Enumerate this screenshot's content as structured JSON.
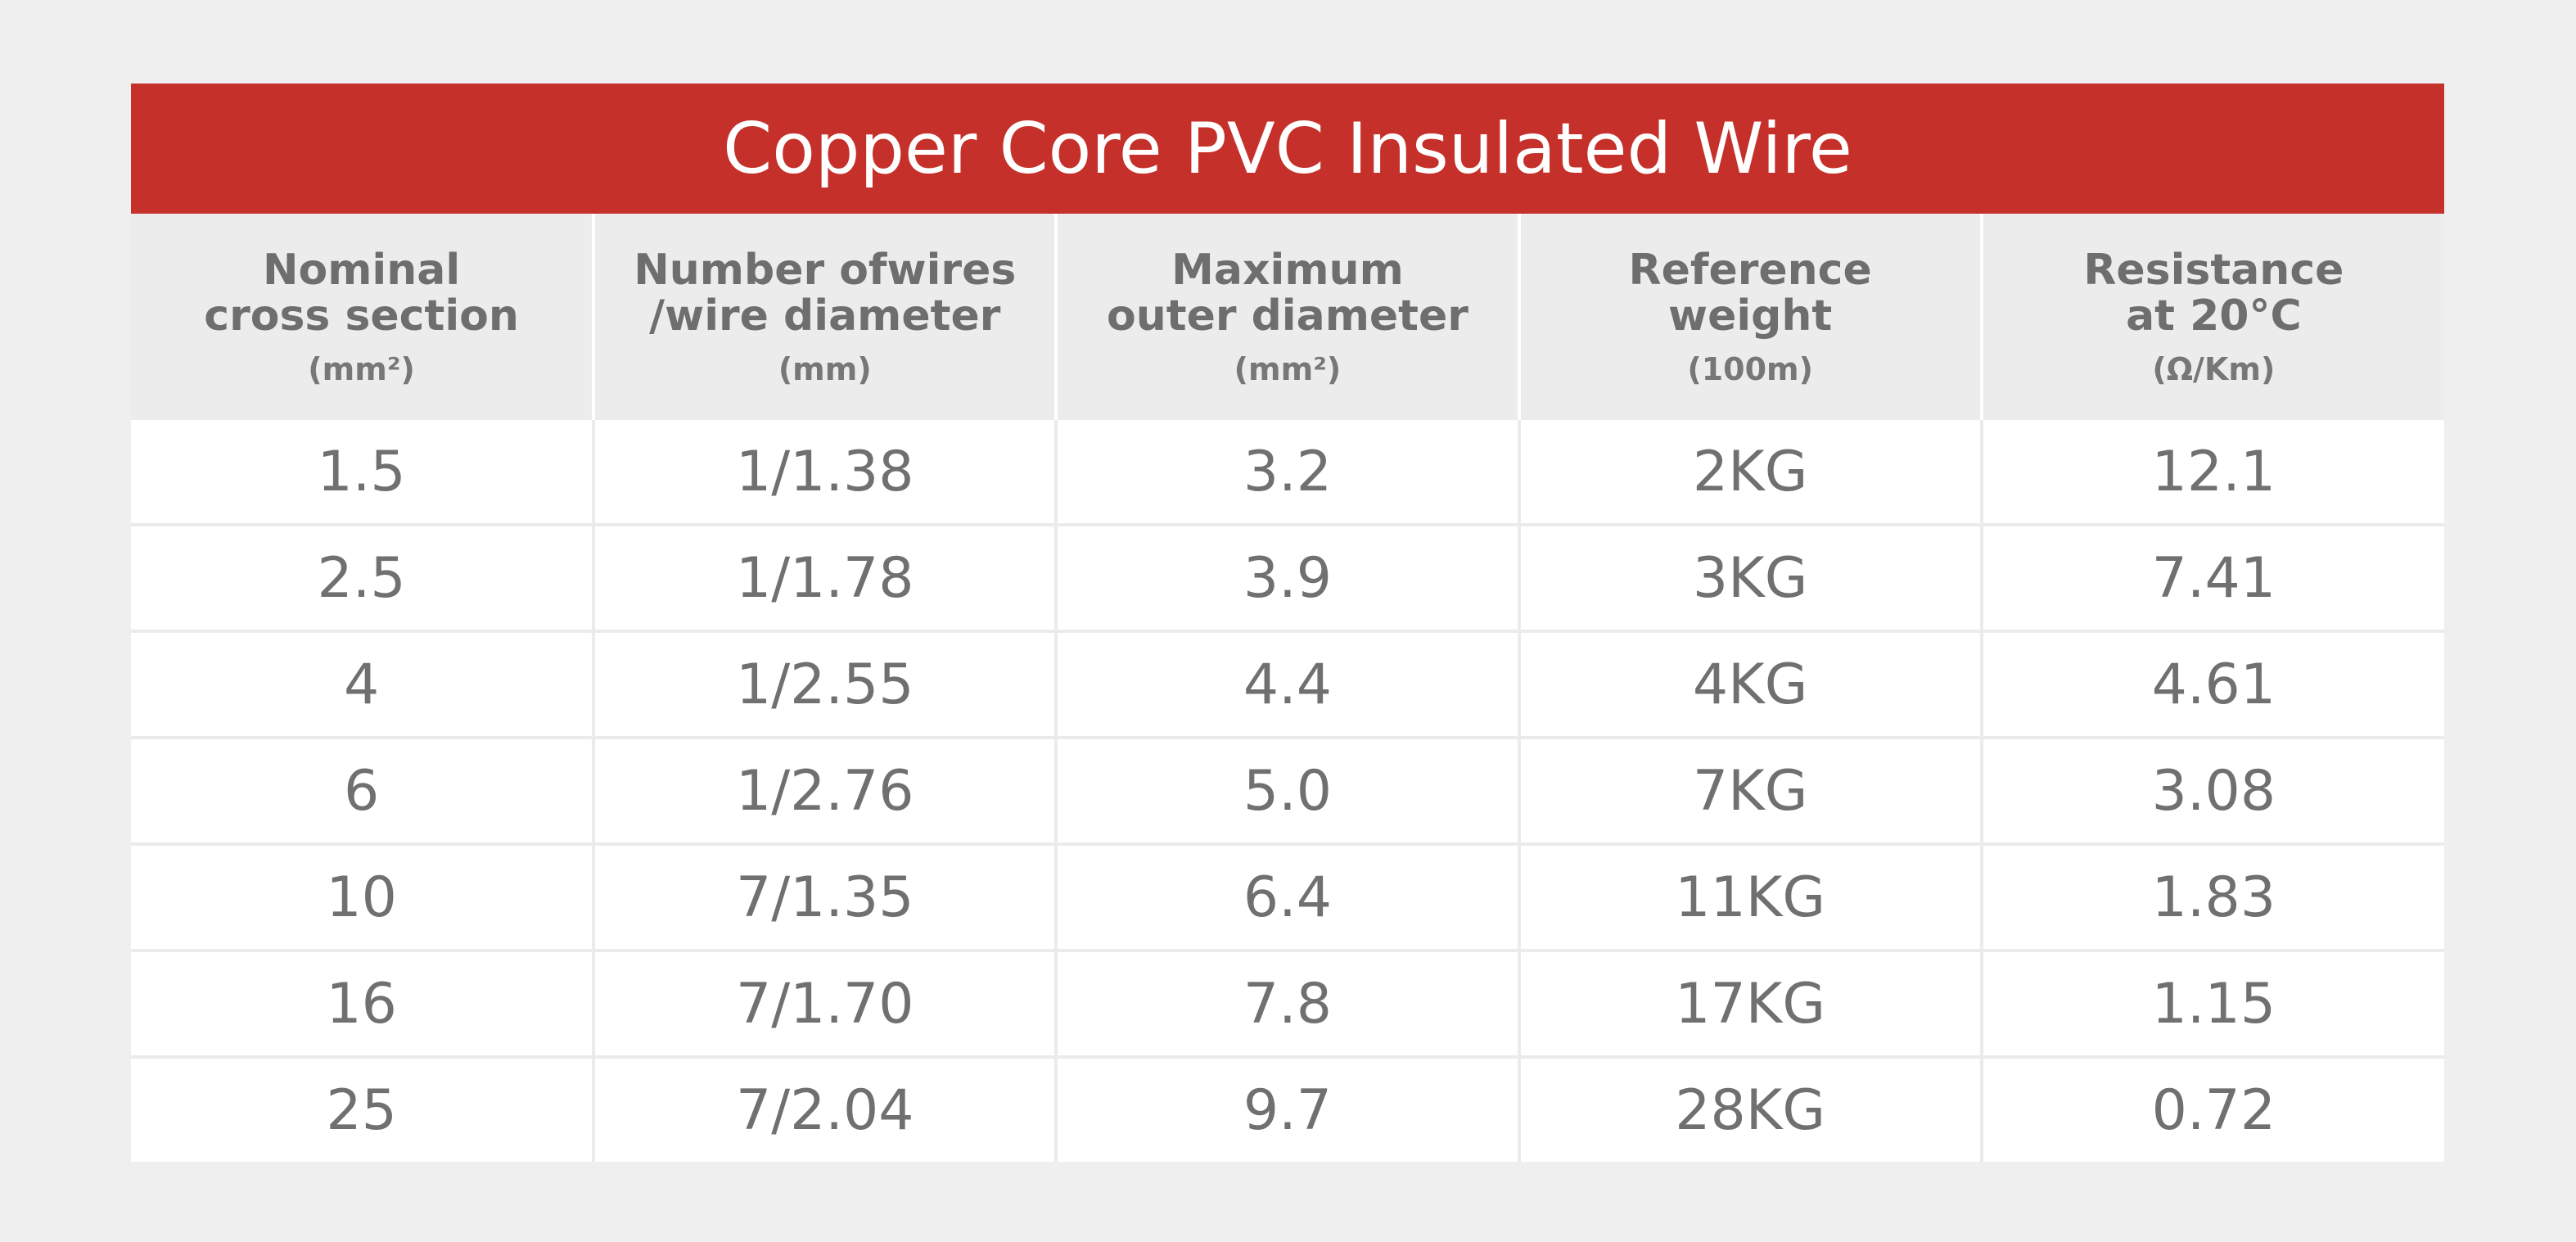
{
  "title": "Copper Core PVC Insulated Wire",
  "colors": {
    "title_background": "#c5312a",
    "header_background": "#ececec",
    "page_background": "#efefef",
    "text": "#707070"
  },
  "columns": [
    {
      "line1": "Nominal",
      "line2": "cross section",
      "unit": "(mm²)"
    },
    {
      "line1": "Number ofwires",
      "line2": "/wire diameter",
      "unit": "(mm)"
    },
    {
      "line1": "Maximum",
      "line2": "outer diameter",
      "unit": "(mm²)"
    },
    {
      "line1": "Reference",
      "line2": "weight",
      "unit": "(100m)"
    },
    {
      "line1": "Resistance",
      "line2": "at 20°C",
      "unit": "(Ω/Km)"
    }
  ],
  "rows": [
    [
      "1.5",
      "1/1.38",
      "3.2",
      "2KG",
      "12.1"
    ],
    [
      "2.5",
      "1/1.78",
      "3.9",
      "3KG",
      "7.41"
    ],
    [
      "4",
      "1/2.55",
      "4.4",
      "4KG",
      "4.61"
    ],
    [
      "6",
      "1/2.76",
      "5.0",
      "7KG",
      "3.08"
    ],
    [
      "10",
      "7/1.35",
      "6.4",
      "11KG",
      "1.83"
    ],
    [
      "16",
      "7/1.70",
      "7.8",
      "17KG",
      "1.15"
    ],
    [
      "25",
      "7/2.04",
      "9.7",
      "28KG",
      "0.72"
    ]
  ]
}
